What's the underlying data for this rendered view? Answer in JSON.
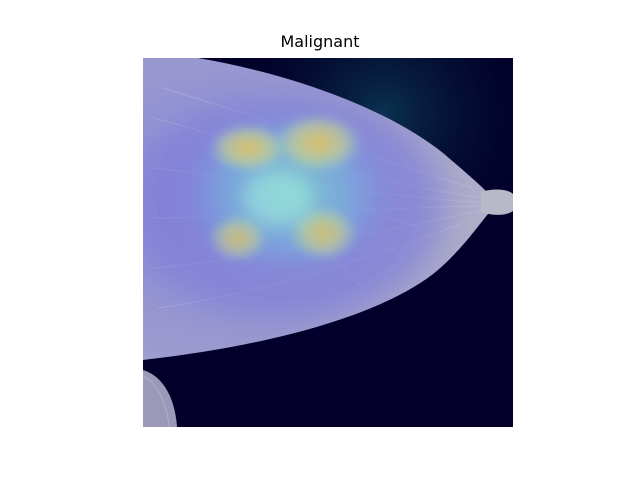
{
  "figure": {
    "title": "Malignant"
  },
  "image": {
    "subject": "mammogram-with-heatmap-overlay",
    "colors": {
      "background": "#02002a",
      "tissue": "#a9a9c4",
      "heatmap_low": "#7d7ad8",
      "heatmap_mid": "#6fd3d0",
      "heatmap_high": "#d9c866"
    }
  }
}
